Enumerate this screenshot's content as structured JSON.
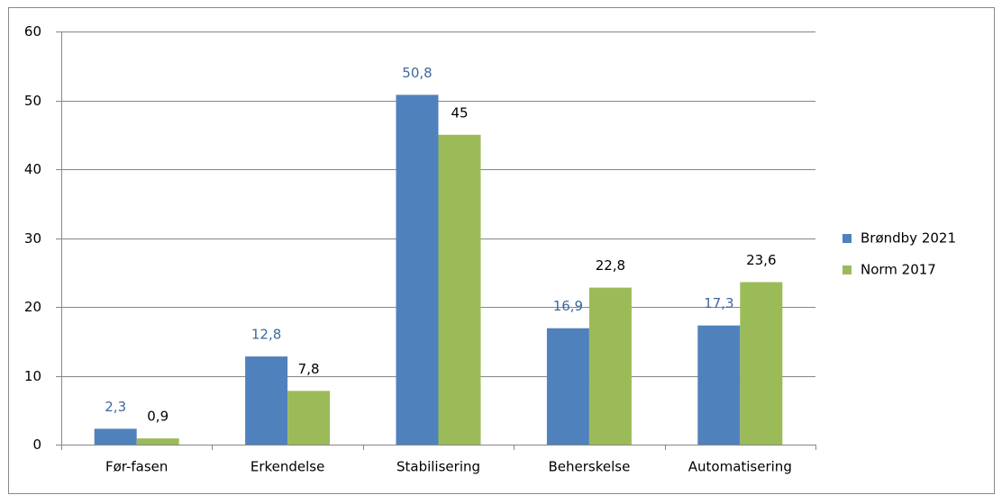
{
  "chart_data": {
    "type": "bar",
    "categories": [
      "Før-fasen",
      "Erkendelse",
      "Stabilisering",
      "Beherskelse",
      "Automatisering"
    ],
    "series": [
      {
        "name": "Brøndby 2021",
        "color": "#4f81bd",
        "label_color": "#3e689e",
        "values": [
          2.3,
          12.8,
          50.8,
          16.9,
          17.3
        ],
        "value_labels": [
          "2,3",
          "12,8",
          "50,8",
          "16,9",
          "17,3"
        ]
      },
      {
        "name": "Norm 2017",
        "color": "#9bbb59",
        "label_color": "#000000",
        "values": [
          0.9,
          7.8,
          45,
          22.8,
          23.6
        ],
        "value_labels": [
          "0,9",
          "7,8",
          "45",
          "22,8",
          "23,6"
        ]
      }
    ],
    "ylim": [
      0,
      60
    ],
    "yticks": [
      0,
      10,
      20,
      30,
      40,
      50,
      60
    ],
    "grid": true,
    "legend": "right"
  }
}
